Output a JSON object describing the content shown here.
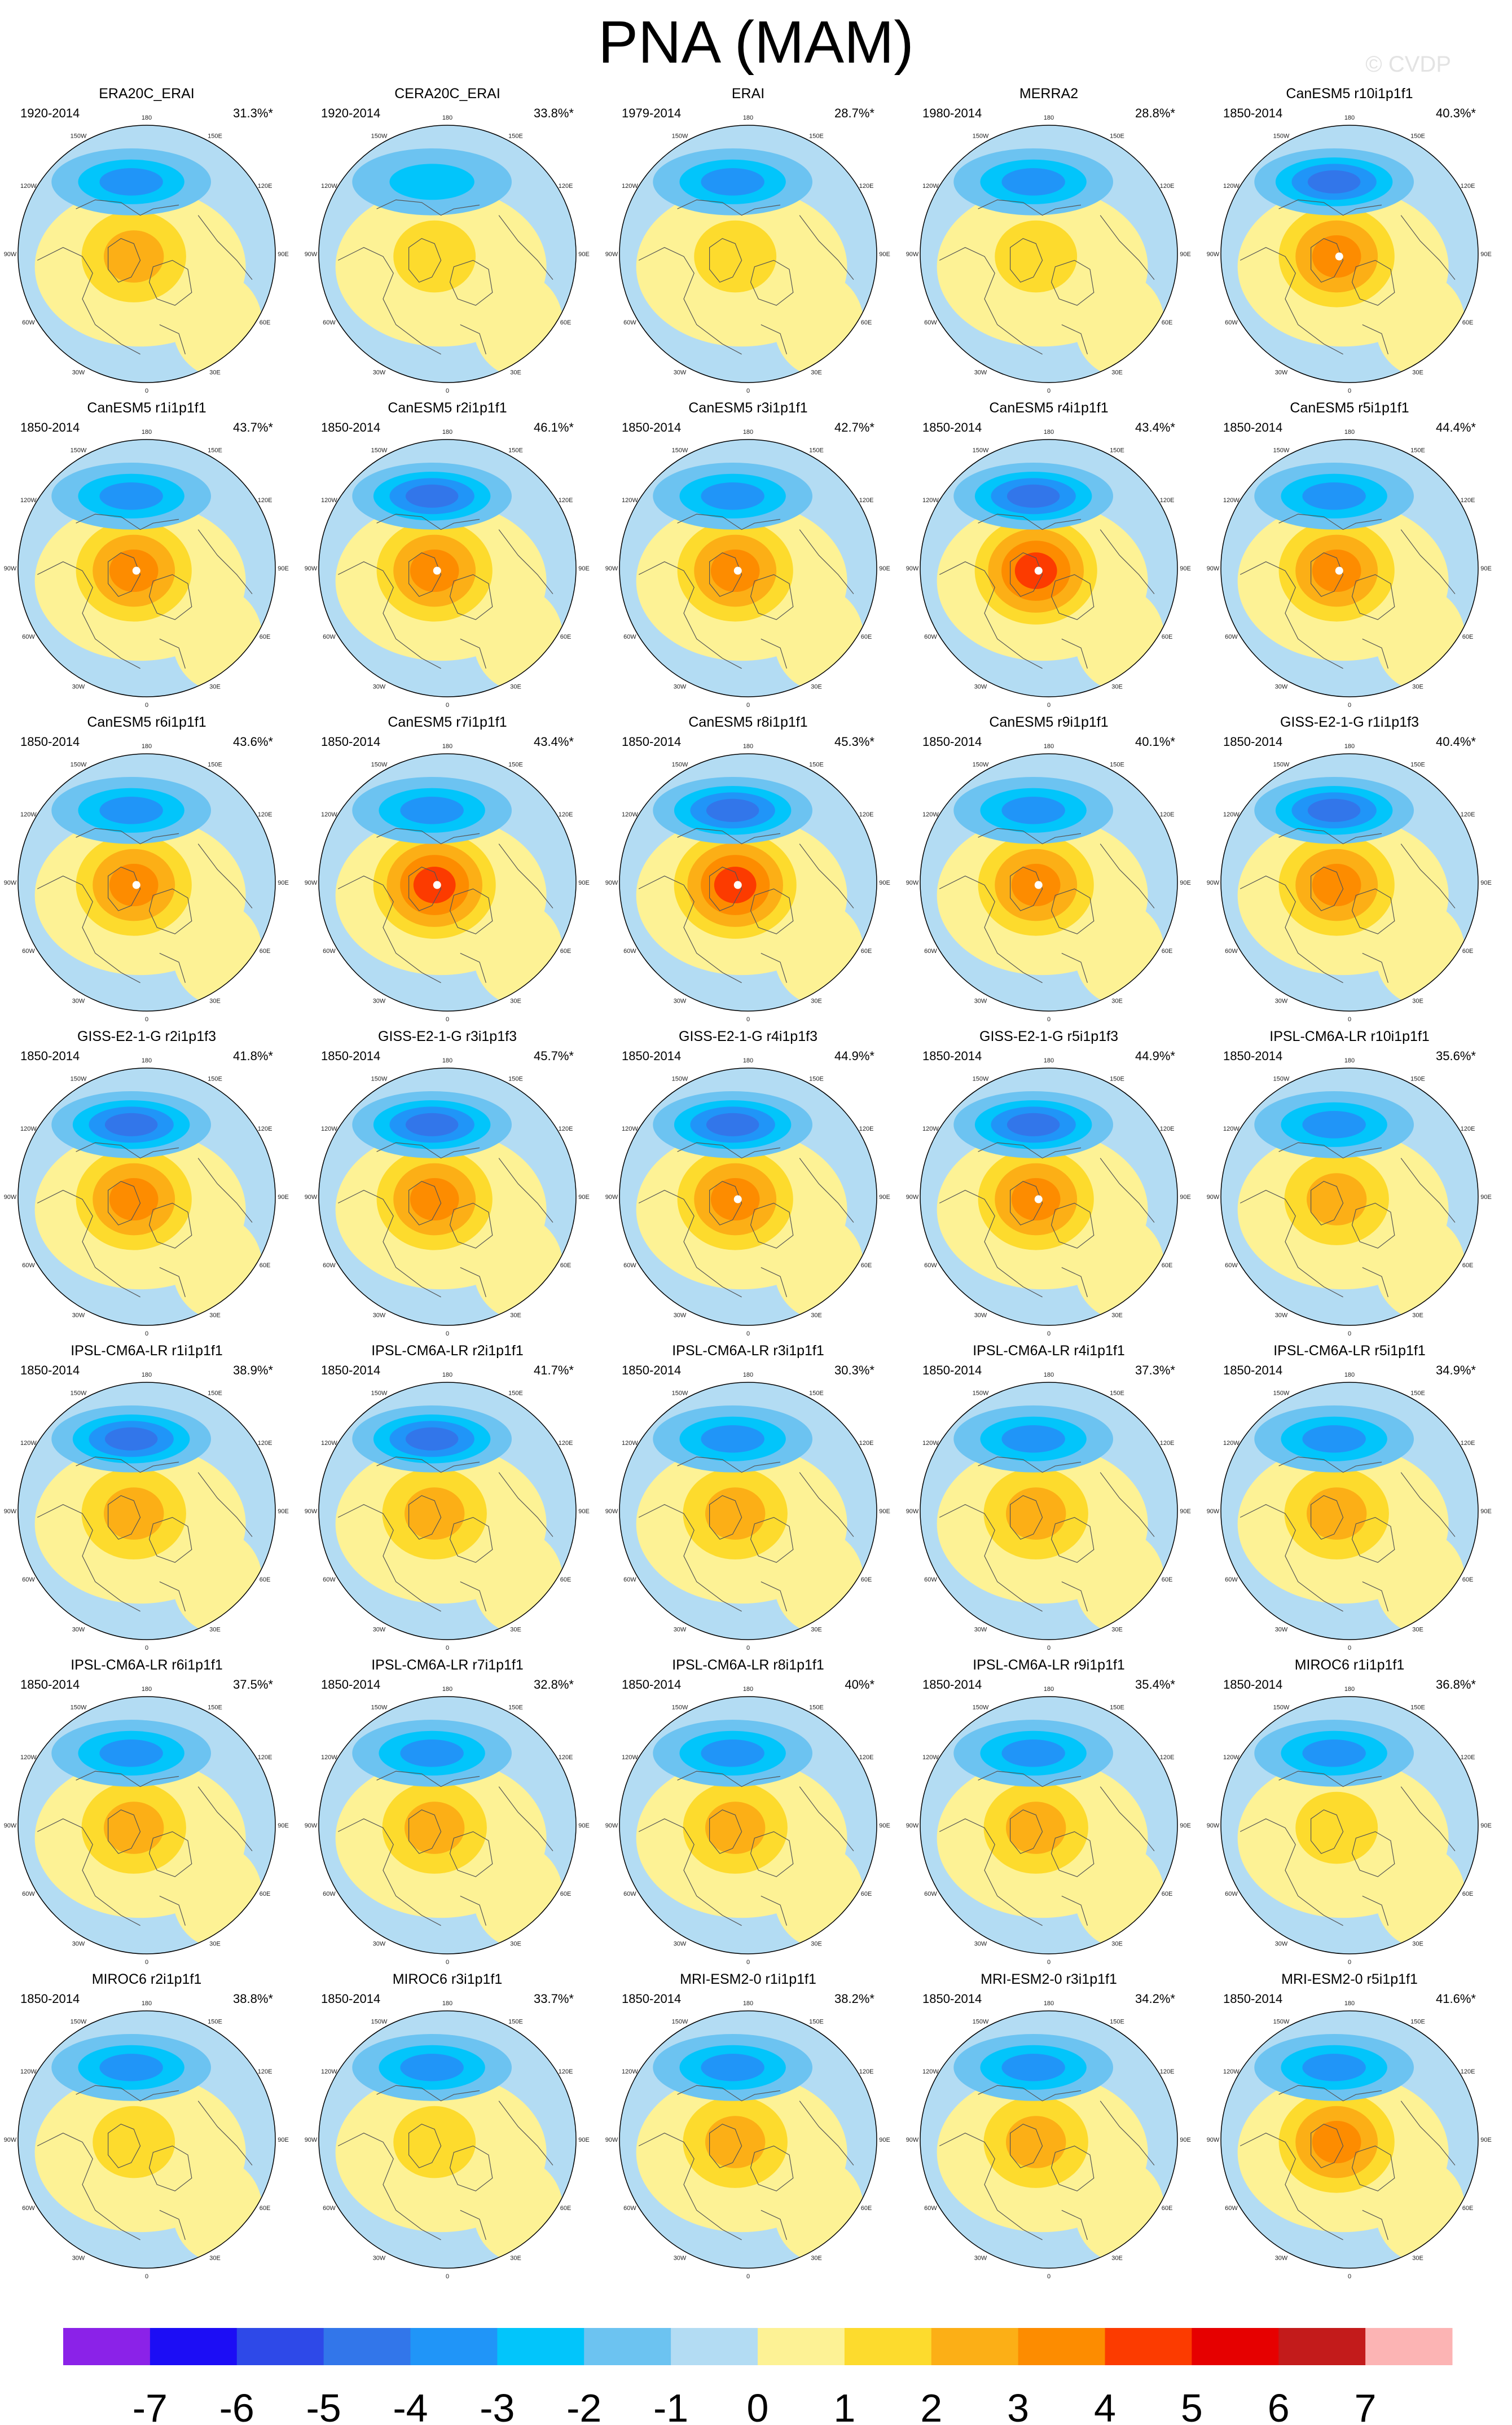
{
  "title": "PNA (MAM)",
  "watermark": "© CVDP",
  "colors": {
    "ocean": "#b3dcf3",
    "coast": "#555555",
    "levels": [
      "#8b22e8",
      "#1c0df5",
      "#2e49e8",
      "#3276ea",
      "#2095f8",
      "#02c5fb",
      "#6cc3f1",
      "#b3dcf3",
      "#fdf295",
      "#fddb2d",
      "#fcaf16",
      "#fd8c00",
      "#fc3b00",
      "#e60000",
      "#c31b1b",
      "#fcb4b4"
    ]
  },
  "lon_labels": [
    "180",
    "150E",
    "120E",
    "90E",
    "60E",
    "30E",
    "0",
    "30W",
    "60W",
    "90W",
    "120W",
    "150W"
  ],
  "chart_data": {
    "type": "heatmap",
    "title": "PNA (MAM)",
    "projection": "north polar stereographic",
    "colorbar": {
      "ticks": [
        "-7",
        "-6",
        "-5",
        "-4",
        "-3",
        "-2",
        "-1",
        "0",
        "1",
        "2",
        "3",
        "4",
        "5",
        "6",
        "7"
      ],
      "n_colors": 16
    },
    "panels": [
      {
        "name": "ERA20C_ERAI",
        "period": "1920-2014",
        "pct": "31.3%*",
        "neg": -3.2,
        "pos": 2.2
      },
      {
        "name": "CERA20C_ERAI",
        "period": "1920-2014",
        "pct": "33.8%*",
        "neg": -3.0,
        "pos": 2.0
      },
      {
        "name": "ERAI",
        "period": "1979-2014",
        "pct": "28.7%*",
        "neg": -3.6,
        "pos": 2.0
      },
      {
        "name": "MERRA2",
        "period": "1980-2014",
        "pct": "28.8%*",
        "neg": -3.6,
        "pos": 2.0
      },
      {
        "name": "CanESM5 r10i1p1f1",
        "period": "1850-2014",
        "pct": "40.3%*",
        "neg": -4.2,
        "pos": 3.8
      },
      {
        "name": "CanESM5 r1i1p1f1",
        "period": "1850-2014",
        "pct": "43.7%*",
        "neg": -4.0,
        "pos": 4.0
      },
      {
        "name": "CanESM5 r2i1p1f1",
        "period": "1850-2014",
        "pct": "46.1%*",
        "neg": -4.2,
        "pos": 4.0
      },
      {
        "name": "CanESM5 r3i1p1f1",
        "period": "1850-2014",
        "pct": "42.7%*",
        "neg": -4.0,
        "pos": 4.0
      },
      {
        "name": "CanESM5 r4i1p1f1",
        "period": "1850-2014",
        "pct": "43.4%*",
        "neg": -4.2,
        "pos": 4.6
      },
      {
        "name": "CanESM5 r5i1p1f1",
        "period": "1850-2014",
        "pct": "44.4%*",
        "neg": -4.0,
        "pos": 4.0
      },
      {
        "name": "CanESM5 r6i1p1f1",
        "period": "1850-2014",
        "pct": "43.6%*",
        "neg": -4.0,
        "pos": 4.0
      },
      {
        "name": "CanESM5 r7i1p1f1",
        "period": "1850-2014",
        "pct": "43.4%*",
        "neg": -4.0,
        "pos": 4.6
      },
      {
        "name": "CanESM5 r8i1p1f1",
        "period": "1850-2014",
        "pct": "45.3%*",
        "neg": -4.2,
        "pos": 4.6
      },
      {
        "name": "CanESM5 r9i1p1f1",
        "period": "1850-2014",
        "pct": "40.1%*",
        "neg": -4.0,
        "pos": 4.0
      },
      {
        "name": "GISS-E2-1-G r1i1p1f3",
        "period": "1850-2014",
        "pct": "40.4%*",
        "neg": -4.2,
        "pos": 3.2
      },
      {
        "name": "GISS-E2-1-G r2i1p1f3",
        "period": "1850-2014",
        "pct": "41.8%*",
        "neg": -4.4,
        "pos": 3.2
      },
      {
        "name": "GISS-E2-1-G r3i1p1f3",
        "period": "1850-2014",
        "pct": "45.7%*",
        "neg": -4.4,
        "pos": 3.2
      },
      {
        "name": "GISS-E2-1-G r4i1p1f3",
        "period": "1850-2014",
        "pct": "44.9%*",
        "neg": -4.4,
        "pos": 3.8
      },
      {
        "name": "GISS-E2-1-G r5i1p1f3",
        "period": "1850-2014",
        "pct": "44.9%*",
        "neg": -4.2,
        "pos": 3.8
      },
      {
        "name": "IPSL-CM6A-LR r10i1p1f1",
        "period": "1850-2014",
        "pct": "35.6%*",
        "neg": -3.6,
        "pos": 3.0
      },
      {
        "name": "IPSL-CM6A-LR r1i1p1f1",
        "period": "1850-2014",
        "pct": "38.9%*",
        "neg": -4.2,
        "pos": 3.0
      },
      {
        "name": "IPSL-CM6A-LR r2i1p1f1",
        "period": "1850-2014",
        "pct": "41.7%*",
        "neg": -4.2,
        "pos": 3.0
      },
      {
        "name": "IPSL-CM6A-LR r3i1p1f1",
        "period": "1850-2014",
        "pct": "30.3%*",
        "neg": -3.2,
        "pos": 2.6
      },
      {
        "name": "IPSL-CM6A-LR r4i1p1f1",
        "period": "1850-2014",
        "pct": "37.3%*",
        "neg": -4.0,
        "pos": 3.0
      },
      {
        "name": "IPSL-CM6A-LR r5i1p1f1",
        "period": "1850-2014",
        "pct": "34.9%*",
        "neg": -4.0,
        "pos": 3.0
      },
      {
        "name": "IPSL-CM6A-LR r6i1p1f1",
        "period": "1850-2014",
        "pct": "37.5%*",
        "neg": -4.0,
        "pos": 3.0
      },
      {
        "name": "IPSL-CM6A-LR r7i1p1f1",
        "period": "1850-2014",
        "pct": "32.8%*",
        "neg": -3.4,
        "pos": 2.8
      },
      {
        "name": "IPSL-CM6A-LR r8i1p1f1",
        "period": "1850-2014",
        "pct": "40%*",
        "neg": -3.8,
        "pos": 3.0
      },
      {
        "name": "IPSL-CM6A-LR r9i1p1f1",
        "period": "1850-2014",
        "pct": "35.4%*",
        "neg": -3.8,
        "pos": 3.0
      },
      {
        "name": "MIROC6 r1i1p1f1",
        "period": "1850-2014",
        "pct": "36.8%*",
        "neg": -3.8,
        "pos": 1.2
      },
      {
        "name": "MIROC6 r2i1p1f1",
        "period": "1850-2014",
        "pct": "38.8%*",
        "neg": -4.0,
        "pos": 1.2
      },
      {
        "name": "MIROC6 r3i1p1f1",
        "period": "1850-2014",
        "pct": "33.7%*",
        "neg": -3.4,
        "pos": 1.2
      },
      {
        "name": "MRI-ESM2-0 r1i1p1f1",
        "period": "1850-2014",
        "pct": "38.2%*",
        "neg": -3.4,
        "pos": 3.0
      },
      {
        "name": "MRI-ESM2-0 r3i1p1f1",
        "period": "1850-2014",
        "pct": "34.2%*",
        "neg": -4.0,
        "pos": 3.0
      },
      {
        "name": "MRI-ESM2-0 r5i1p1f1",
        "period": "1850-2014",
        "pct": "41.6%*",
        "neg": -3.6,
        "pos": 3.6
      }
    ]
  }
}
